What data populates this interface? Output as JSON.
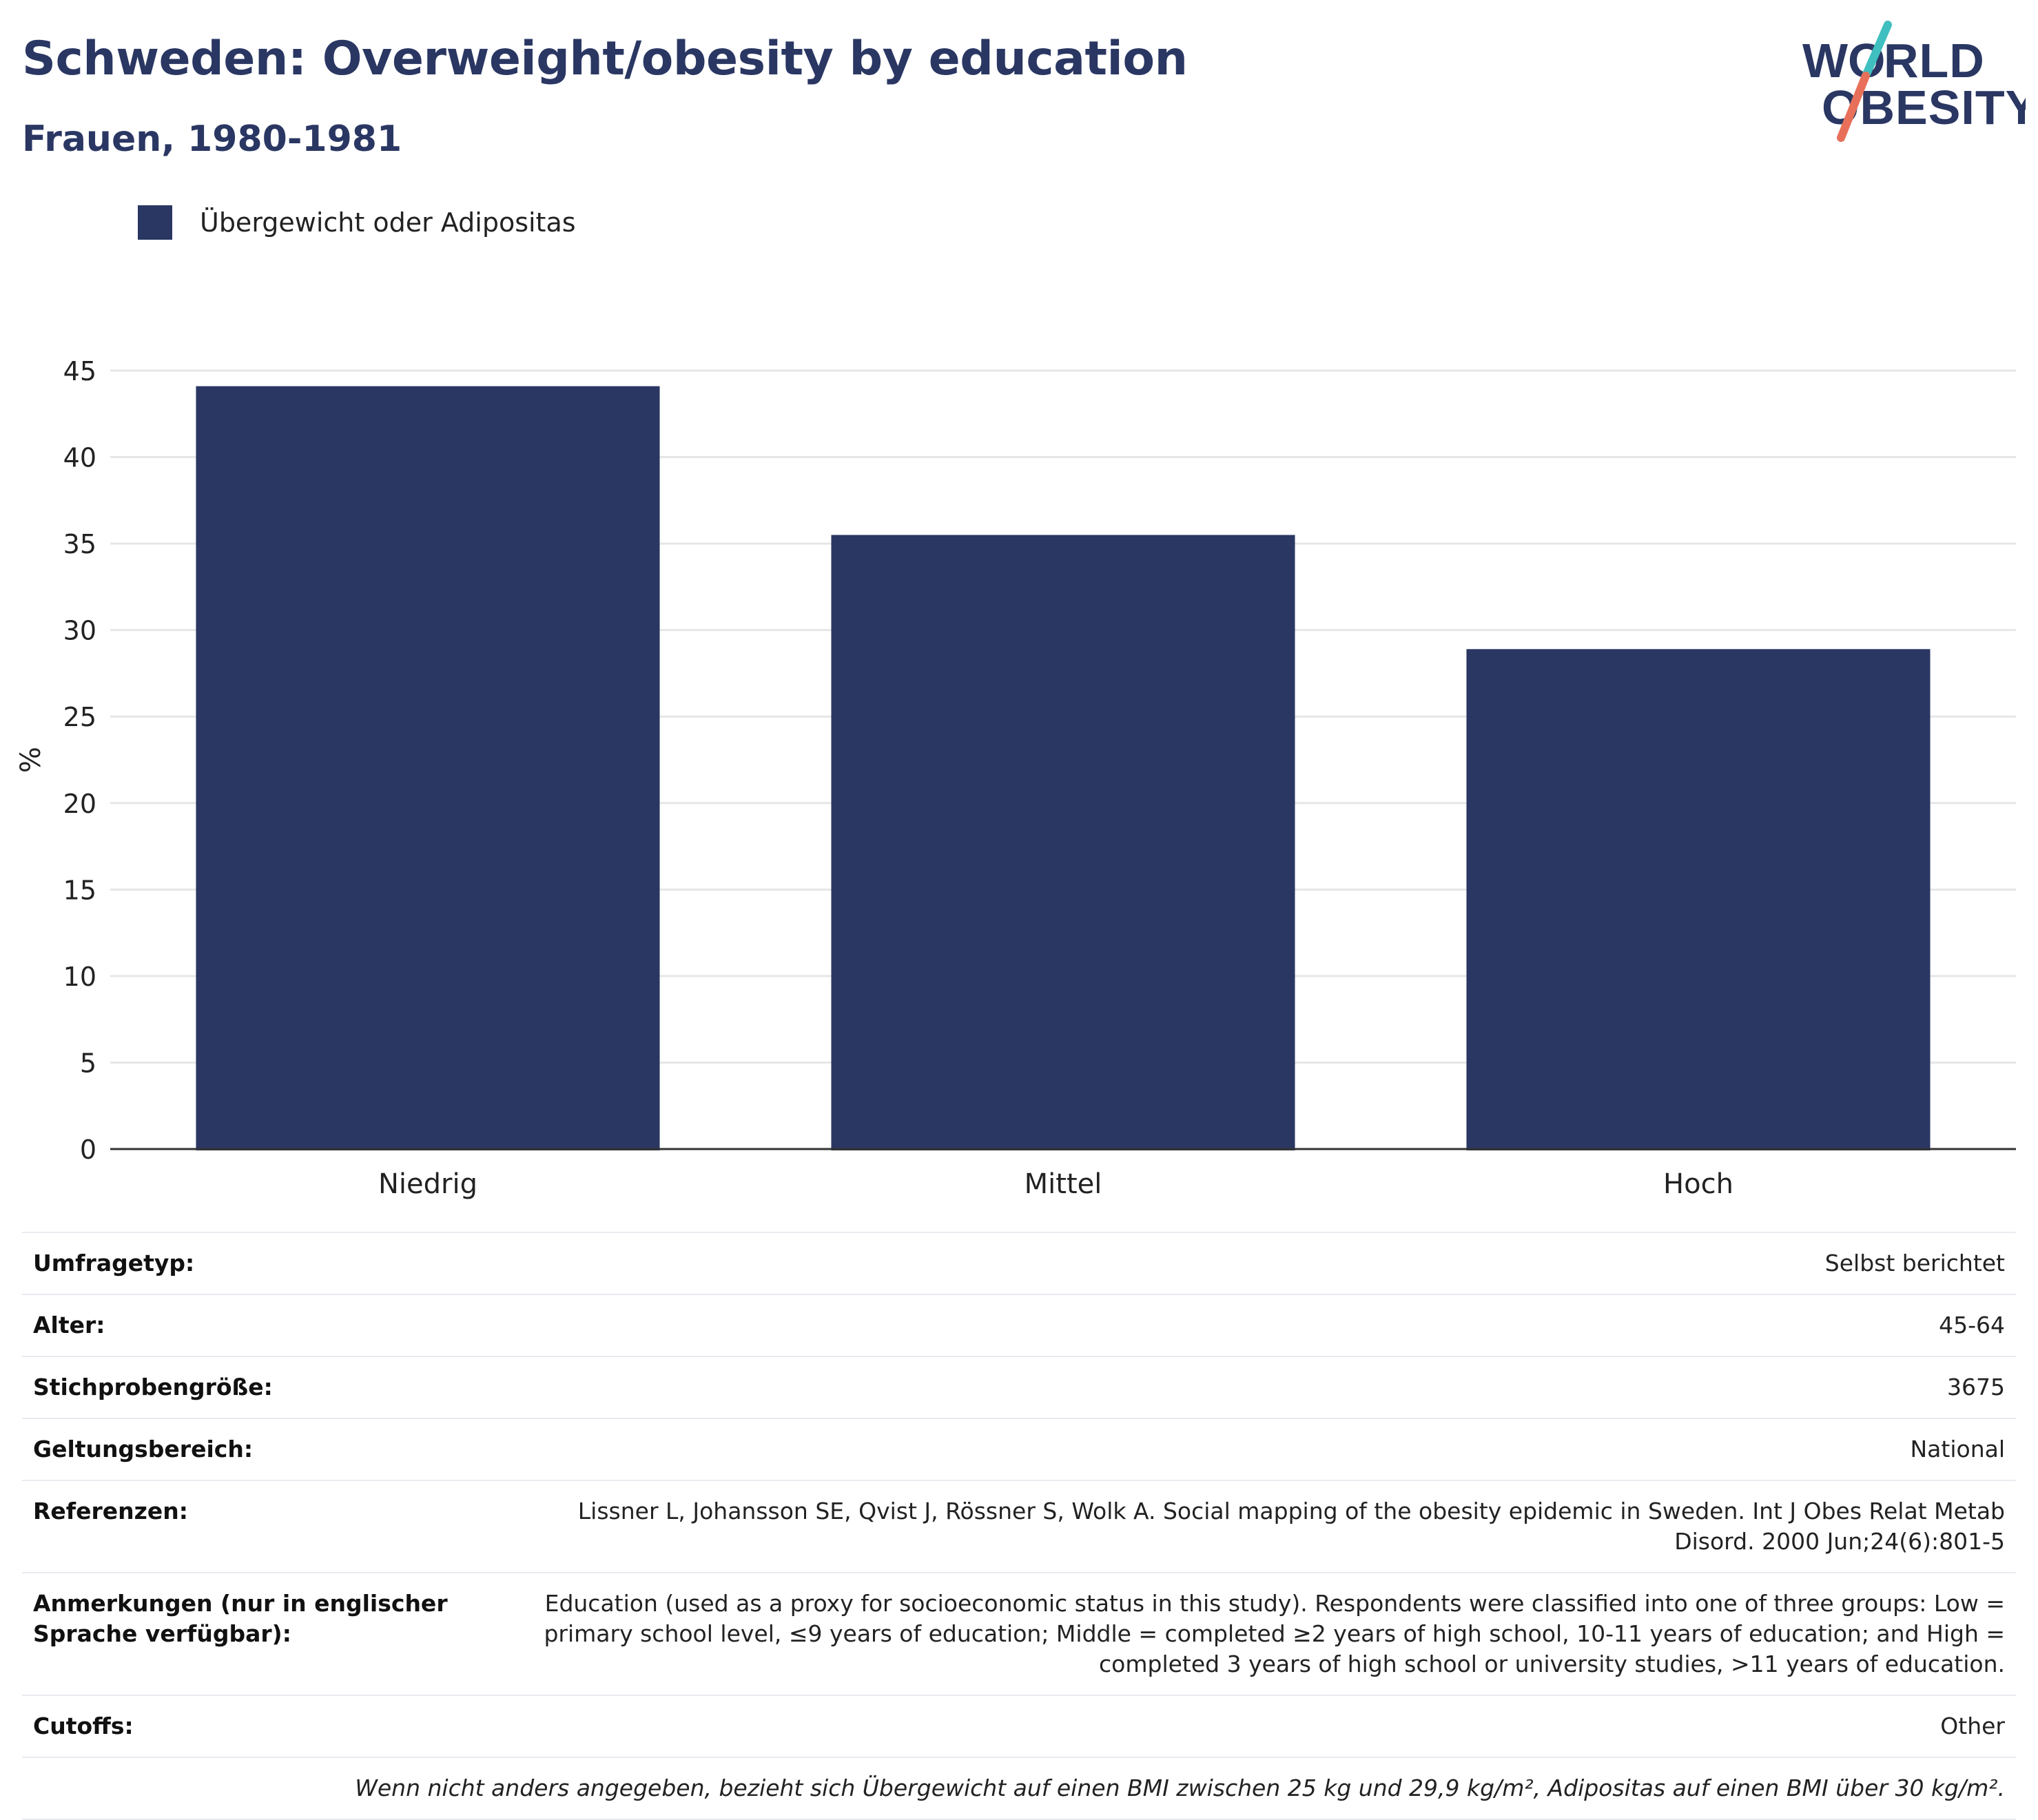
{
  "header": {
    "title": "Schweden: Overweight/obesity by education",
    "subtitle": "Frauen, 1980-1981",
    "logo_text": "WORLD OBESITY"
  },
  "colors": {
    "bar": "#2a3763",
    "title": "#2a3763",
    "logo_navy": "#2a3763",
    "logo_teal": "#3fbfbf",
    "logo_coral": "#e8705a",
    "grid": "#e6e6e6"
  },
  "chart_data": {
    "type": "bar",
    "categories": [
      "Niedrig",
      "Mittel",
      "Hoch"
    ],
    "series": [
      {
        "name": "Übergewicht oder Adipositas",
        "values": [
          44.1,
          35.5,
          28.9
        ]
      }
    ],
    "ylabel": "%",
    "xlabel": "",
    "ylim": [
      0,
      45
    ],
    "yticks": [
      0,
      5,
      10,
      15,
      20,
      25,
      30,
      35,
      40,
      45
    ],
    "grid": true,
    "legend_position": "top-left"
  },
  "info": {
    "rows": [
      {
        "label": "Umfragetyp:",
        "value": "Selbst berichtet"
      },
      {
        "label": "Alter:",
        "value": "45-64"
      },
      {
        "label": "Stichprobengröße:",
        "value": "3675"
      },
      {
        "label": "Geltungsbereich:",
        "value": "National"
      },
      {
        "label": "Referenzen:",
        "value": "Lissner L, Johansson SE, Qvist J, Rössner S, Wolk A. Social mapping of the obesity epidemic in Sweden. Int J Obes Relat Metab Disord. 2000 Jun;24(6):801-5"
      },
      {
        "label": "Anmerkungen (nur in englischer Sprache verfügbar):",
        "value": "Education (used as a proxy for socioeconomic status in this study). Respondents were classified into one of three groups: Low = primary school level, ≤9 years of education; Middle = completed ≥2 years of high school, 10-11 years of education; and High = completed 3 years of high school or university studies, >11 years of education."
      },
      {
        "label": "Cutoffs:",
        "value": "Other"
      }
    ],
    "footnote": "Wenn nicht anders angegeben, bezieht sich Übergewicht auf einen BMI zwischen 25 kg und 29,9 kg/m², Adipositas auf einen BMI über 30 kg/m²."
  }
}
